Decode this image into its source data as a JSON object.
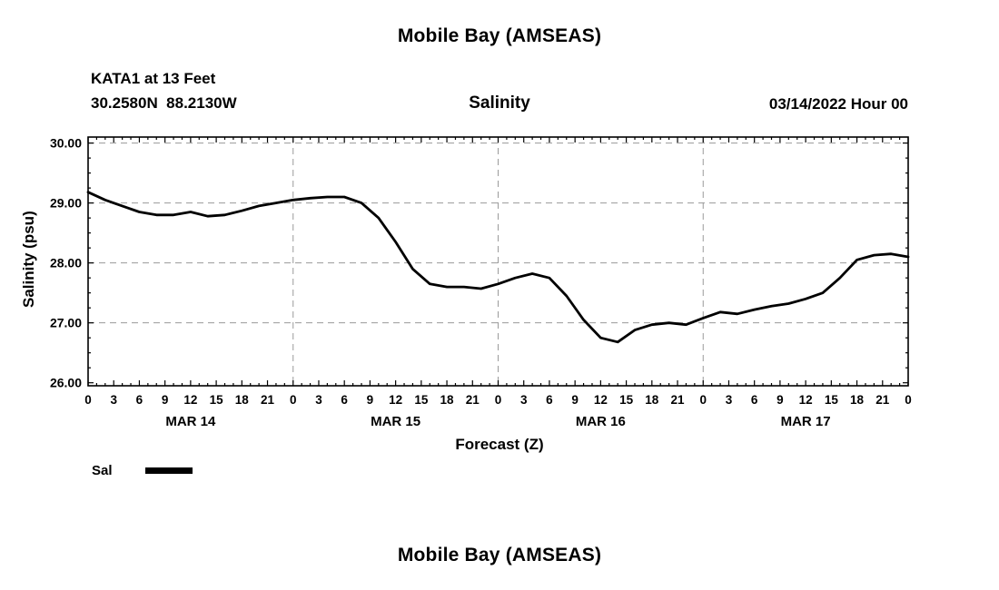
{
  "page": {
    "top_title": "Mobile Bay (AMSEAS)",
    "bottom_title": "Mobile Bay (AMSEAS)"
  },
  "header": {
    "station_line1": "KATA1 at 13 Feet",
    "station_line2": "30.2580N  88.2130W",
    "chart_title": "Salinity",
    "date_label": "03/14/2022 Hour 00"
  },
  "axes": {
    "x_label": "Forecast (Z)",
    "y_label": "Salinity (psu)"
  },
  "legend": {
    "label": "Sal",
    "line_color": "#000000"
  },
  "chart_data": {
    "type": "line",
    "title": "Salinity",
    "xlabel": "Forecast (Z)",
    "ylabel": "Salinity (psu)",
    "xlim": [
      0,
      96
    ],
    "ylim": [
      26.0,
      30.0
    ],
    "grid": true,
    "grid_style": "dashed",
    "x_tick_interval_hours": 3,
    "x_tick_labels_cycle": [
      "0",
      "3",
      "6",
      "9",
      "12",
      "15",
      "18",
      "21"
    ],
    "day_labels": [
      "MAR 14",
      "MAR 15",
      "MAR 16",
      "MAR 17"
    ],
    "day_label_center_hours": [
      12,
      36,
      60,
      84
    ],
    "day_boundary_hours": [
      24,
      48,
      72
    ],
    "y_tick_values": [
      26,
      27,
      28,
      29,
      30
    ],
    "y_tick_labels": [
      "26.00",
      "27.00",
      "28.00",
      "29.00",
      "30.00"
    ],
    "legend_position": "below-left",
    "series": [
      {
        "name": "Sal",
        "color": "#000000",
        "x": [
          0,
          2,
          4,
          6,
          8,
          10,
          12,
          14,
          16,
          18,
          20,
          22,
          24,
          26,
          28,
          30,
          32,
          34,
          36,
          38,
          40,
          42,
          44,
          46,
          48,
          50,
          52,
          54,
          56,
          58,
          60,
          62,
          64,
          66,
          68,
          70,
          72,
          74,
          76,
          78,
          80,
          82,
          84,
          86,
          88,
          90,
          92,
          94,
          96
        ],
        "values": [
          29.18,
          29.05,
          28.95,
          28.85,
          28.8,
          28.8,
          28.85,
          28.78,
          28.8,
          28.87,
          28.95,
          29.0,
          29.05,
          29.08,
          29.1,
          29.1,
          29.0,
          28.75,
          28.35,
          27.9,
          27.65,
          27.6,
          27.6,
          27.57,
          27.65,
          27.75,
          27.82,
          27.75,
          27.45,
          27.05,
          26.75,
          26.68,
          26.88,
          26.97,
          27.0,
          26.97,
          27.08,
          27.18,
          27.15,
          27.22,
          27.28,
          27.32,
          27.4,
          27.5,
          27.75,
          28.05,
          28.13,
          28.15,
          28.1
        ]
      }
    ]
  }
}
